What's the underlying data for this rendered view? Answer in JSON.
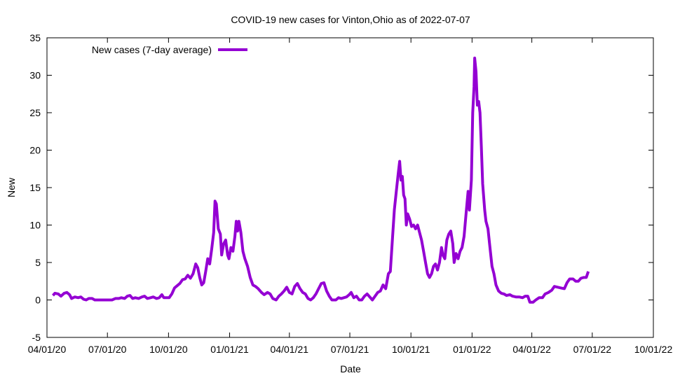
{
  "chart_data": {
    "type": "line",
    "title": "COVID-19 new cases for Vinton,Ohio as of 2022-07-07",
    "xlabel": "Date",
    "ylabel": "New",
    "ylim": [
      -5,
      35
    ],
    "yticks": [
      -5,
      0,
      5,
      10,
      15,
      20,
      25,
      30,
      35
    ],
    "xlim": [
      "2020-04-01",
      "2022-10-01"
    ],
    "xticks": [
      {
        "date": "2020-04-01",
        "label": "04/01/20"
      },
      {
        "date": "2020-07-01",
        "label": "07/01/20"
      },
      {
        "date": "2020-10-01",
        "label": "10/01/20"
      },
      {
        "date": "2021-01-01",
        "label": "01/01/21"
      },
      {
        "date": "2021-04-01",
        "label": "04/01/21"
      },
      {
        "date": "2021-07-01",
        "label": "07/01/21"
      },
      {
        "date": "2021-10-01",
        "label": "10/01/21"
      },
      {
        "date": "2022-01-01",
        "label": "01/01/22"
      },
      {
        "date": "2022-04-01",
        "label": "04/01/22"
      },
      {
        "date": "2022-07-01",
        "label": "07/01/22"
      },
      {
        "date": "2022-10-01",
        "label": "10/01/22"
      }
    ],
    "grid": false,
    "legend_position": "top-left",
    "series": [
      {
        "name": "New cases (7-day average)",
        "color": "#9400d3",
        "points": [
          [
            "2020-04-10",
            0.6
          ],
          [
            "2020-04-13",
            0.9
          ],
          [
            "2020-04-18",
            0.8
          ],
          [
            "2020-04-22",
            0.5
          ],
          [
            "2020-04-27",
            0.9
          ],
          [
            "2020-05-01",
            1.0
          ],
          [
            "2020-05-05",
            0.7
          ],
          [
            "2020-05-08",
            0.2
          ],
          [
            "2020-05-13",
            0.4
          ],
          [
            "2020-05-18",
            0.3
          ],
          [
            "2020-05-22",
            0.4
          ],
          [
            "2020-05-26",
            0.1
          ],
          [
            "2020-05-30",
            0.0
          ],
          [
            "2020-06-03",
            0.2
          ],
          [
            "2020-06-08",
            0.2
          ],
          [
            "2020-06-12",
            0.0
          ],
          [
            "2020-06-20",
            0.0
          ],
          [
            "2020-06-30",
            0.0
          ],
          [
            "2020-07-08",
            0.0
          ],
          [
            "2020-07-13",
            0.2
          ],
          [
            "2020-07-18",
            0.2
          ],
          [
            "2020-07-22",
            0.3
          ],
          [
            "2020-07-27",
            0.2
          ],
          [
            "2020-07-31",
            0.5
          ],
          [
            "2020-08-04",
            0.6
          ],
          [
            "2020-08-08",
            0.2
          ],
          [
            "2020-08-12",
            0.3
          ],
          [
            "2020-08-17",
            0.2
          ],
          [
            "2020-08-22",
            0.4
          ],
          [
            "2020-08-26",
            0.5
          ],
          [
            "2020-08-30",
            0.2
          ],
          [
            "2020-09-04",
            0.3
          ],
          [
            "2020-09-08",
            0.4
          ],
          [
            "2020-09-13",
            0.2
          ],
          [
            "2020-09-17",
            0.3
          ],
          [
            "2020-09-21",
            0.7
          ],
          [
            "2020-09-24",
            0.3
          ],
          [
            "2020-09-28",
            0.3
          ],
          [
            "2020-10-02",
            0.3
          ],
          [
            "2020-10-06",
            0.8
          ],
          [
            "2020-10-10",
            1.6
          ],
          [
            "2020-10-14",
            1.9
          ],
          [
            "2020-10-18",
            2.2
          ],
          [
            "2020-10-22",
            2.7
          ],
          [
            "2020-10-26",
            2.8
          ],
          [
            "2020-10-30",
            3.3
          ],
          [
            "2020-11-03",
            2.9
          ],
          [
            "2020-11-07",
            3.5
          ],
          [
            "2020-11-11",
            4.8
          ],
          [
            "2020-11-14",
            4.3
          ],
          [
            "2020-11-17",
            3.0
          ],
          [
            "2020-11-20",
            2.0
          ],
          [
            "2020-11-23",
            2.3
          ],
          [
            "2020-11-26",
            3.8
          ],
          [
            "2020-11-29",
            5.5
          ],
          [
            "2020-12-02",
            4.8
          ],
          [
            "2020-12-05",
            6.8
          ],
          [
            "2020-12-08",
            9.0
          ],
          [
            "2020-12-10",
            13.2
          ],
          [
            "2020-12-12",
            12.8
          ],
          [
            "2020-12-15",
            9.5
          ],
          [
            "2020-12-18",
            8.8
          ],
          [
            "2020-12-20",
            6.0
          ],
          [
            "2020-12-23",
            7.5
          ],
          [
            "2020-12-26",
            8.0
          ],
          [
            "2020-12-29",
            6.0
          ],
          [
            "2020-12-31",
            5.5
          ],
          [
            "2021-01-03",
            7.0
          ],
          [
            "2021-01-06",
            6.5
          ],
          [
            "2021-01-09",
            8.5
          ],
          [
            "2021-01-11",
            10.5
          ],
          [
            "2021-01-13",
            9.2
          ],
          [
            "2021-01-15",
            10.5
          ],
          [
            "2021-01-18",
            9.0
          ],
          [
            "2021-01-21",
            6.5
          ],
          [
            "2021-01-24",
            5.5
          ],
          [
            "2021-01-28",
            4.5
          ],
          [
            "2021-02-01",
            3.0
          ],
          [
            "2021-02-05",
            2.0
          ],
          [
            "2021-02-09",
            1.8
          ],
          [
            "2021-02-13",
            1.5
          ],
          [
            "2021-02-18",
            1.0
          ],
          [
            "2021-02-22",
            0.7
          ],
          [
            "2021-02-27",
            1.0
          ],
          [
            "2021-03-03",
            0.8
          ],
          [
            "2021-03-07",
            0.2
          ],
          [
            "2021-03-12",
            0.0
          ],
          [
            "2021-03-16",
            0.5
          ],
          [
            "2021-03-20",
            0.8
          ],
          [
            "2021-03-24",
            1.2
          ],
          [
            "2021-03-28",
            1.7
          ],
          [
            "2021-04-01",
            1.0
          ],
          [
            "2021-04-05",
            0.8
          ],
          [
            "2021-04-09",
            1.8
          ],
          [
            "2021-04-13",
            2.2
          ],
          [
            "2021-04-17",
            1.5
          ],
          [
            "2021-04-21",
            1.0
          ],
          [
            "2021-04-25",
            0.8
          ],
          [
            "2021-04-29",
            0.2
          ],
          [
            "2021-05-03",
            0.0
          ],
          [
            "2021-05-07",
            0.3
          ],
          [
            "2021-05-11",
            0.8
          ],
          [
            "2021-05-15",
            1.5
          ],
          [
            "2021-05-19",
            2.2
          ],
          [
            "2021-05-23",
            2.3
          ],
          [
            "2021-05-27",
            1.2
          ],
          [
            "2021-05-31",
            0.5
          ],
          [
            "2021-06-04",
            0.0
          ],
          [
            "2021-06-10",
            0.0
          ],
          [
            "2021-06-14",
            0.3
          ],
          [
            "2021-06-18",
            0.2
          ],
          [
            "2021-06-22",
            0.3
          ],
          [
            "2021-06-26",
            0.4
          ],
          [
            "2021-06-30",
            0.7
          ],
          [
            "2021-07-03",
            1.0
          ],
          [
            "2021-07-07",
            0.3
          ],
          [
            "2021-07-11",
            0.5
          ],
          [
            "2021-07-15",
            0.0
          ],
          [
            "2021-07-19",
            0.0
          ],
          [
            "2021-07-23",
            0.5
          ],
          [
            "2021-07-27",
            0.8
          ],
          [
            "2021-07-31",
            0.4
          ],
          [
            "2021-08-04",
            0.0
          ],
          [
            "2021-08-08",
            0.5
          ],
          [
            "2021-08-12",
            1.0
          ],
          [
            "2021-08-16",
            1.2
          ],
          [
            "2021-08-20",
            2.0
          ],
          [
            "2021-08-24",
            1.5
          ],
          [
            "2021-08-28",
            3.5
          ],
          [
            "2021-08-31",
            3.8
          ],
          [
            "2021-09-03",
            8.0
          ],
          [
            "2021-09-06",
            12.0
          ],
          [
            "2021-09-09",
            14.5
          ],
          [
            "2021-09-12",
            17.0
          ],
          [
            "2021-09-14",
            18.5
          ],
          [
            "2021-09-16",
            16.0
          ],
          [
            "2021-09-18",
            16.5
          ],
          [
            "2021-09-20",
            14.0
          ],
          [
            "2021-09-22",
            13.5
          ],
          [
            "2021-09-24",
            10.0
          ],
          [
            "2021-09-26",
            11.5
          ],
          [
            "2021-09-29",
            10.8
          ],
          [
            "2021-10-02",
            9.8
          ],
          [
            "2021-10-05",
            10.0
          ],
          [
            "2021-10-08",
            9.5
          ],
          [
            "2021-10-11",
            10.0
          ],
          [
            "2021-10-14",
            9.0
          ],
          [
            "2021-10-17",
            8.0
          ],
          [
            "2021-10-20",
            6.5
          ],
          [
            "2021-10-23",
            5.0
          ],
          [
            "2021-10-26",
            3.5
          ],
          [
            "2021-10-29",
            3.0
          ],
          [
            "2021-11-01",
            3.5
          ],
          [
            "2021-11-04",
            4.5
          ],
          [
            "2021-11-07",
            4.8
          ],
          [
            "2021-11-10",
            4.0
          ],
          [
            "2021-11-13",
            5.0
          ],
          [
            "2021-11-16",
            7.0
          ],
          [
            "2021-11-18",
            6.0
          ],
          [
            "2021-11-21",
            5.5
          ],
          [
            "2021-11-24",
            8.0
          ],
          [
            "2021-11-27",
            8.8
          ],
          [
            "2021-11-30",
            9.2
          ],
          [
            "2021-12-03",
            7.5
          ],
          [
            "2021-12-05",
            5.0
          ],
          [
            "2021-12-08",
            6.2
          ],
          [
            "2021-12-11",
            5.5
          ],
          [
            "2021-12-14",
            6.5
          ],
          [
            "2021-12-17",
            7.0
          ],
          [
            "2021-12-20",
            8.5
          ],
          [
            "2021-12-23",
            11.5
          ],
          [
            "2021-12-26",
            14.5
          ],
          [
            "2021-12-28",
            12.0
          ],
          [
            "2021-12-31",
            16.0
          ],
          [
            "2022-01-02",
            25.0
          ],
          [
            "2022-01-04",
            28.5
          ],
          [
            "2022-01-05",
            32.3
          ],
          [
            "2022-01-07",
            30.5
          ],
          [
            "2022-01-09",
            26.0
          ],
          [
            "2022-01-11",
            26.5
          ],
          [
            "2022-01-13",
            25.0
          ],
          [
            "2022-01-15",
            20.5
          ],
          [
            "2022-01-17",
            15.5
          ],
          [
            "2022-01-20",
            12.0
          ],
          [
            "2022-01-22",
            10.5
          ],
          [
            "2022-01-25",
            9.5
          ],
          [
            "2022-01-28",
            7.0
          ],
          [
            "2022-01-31",
            4.5
          ],
          [
            "2022-02-03",
            3.5
          ],
          [
            "2022-02-06",
            2.0
          ],
          [
            "2022-02-10",
            1.2
          ],
          [
            "2022-02-14",
            0.9
          ],
          [
            "2022-02-18",
            0.8
          ],
          [
            "2022-02-22",
            0.6
          ],
          [
            "2022-02-27",
            0.7
          ],
          [
            "2022-03-03",
            0.5
          ],
          [
            "2022-03-08",
            0.4
          ],
          [
            "2022-03-13",
            0.4
          ],
          [
            "2022-03-18",
            0.3
          ],
          [
            "2022-03-22",
            0.5
          ],
          [
            "2022-03-26",
            0.5
          ],
          [
            "2022-03-29",
            -0.3
          ],
          [
            "2022-04-03",
            -0.3
          ],
          [
            "2022-04-07",
            0.0
          ],
          [
            "2022-04-12",
            0.3
          ],
          [
            "2022-04-17",
            0.3
          ],
          [
            "2022-04-21",
            0.8
          ],
          [
            "2022-04-26",
            1.0
          ],
          [
            "2022-05-01",
            1.3
          ],
          [
            "2022-05-05",
            1.8
          ],
          [
            "2022-05-10",
            1.7
          ],
          [
            "2022-05-15",
            1.6
          ],
          [
            "2022-05-20",
            1.5
          ],
          [
            "2022-05-24",
            2.3
          ],
          [
            "2022-05-28",
            2.8
          ],
          [
            "2022-06-02",
            2.8
          ],
          [
            "2022-06-06",
            2.5
          ],
          [
            "2022-06-10",
            2.5
          ],
          [
            "2022-06-14",
            2.9
          ],
          [
            "2022-06-18",
            3.0
          ],
          [
            "2022-06-22",
            3.0
          ],
          [
            "2022-06-25",
            3.8
          ]
        ]
      }
    ]
  }
}
